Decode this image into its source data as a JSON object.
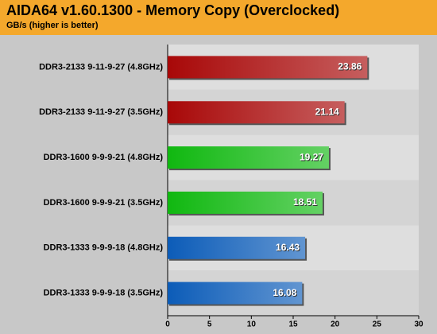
{
  "chart_data": {
    "type": "bar",
    "orientation": "horizontal",
    "title": "AIDA64 v1.60.1300 - Memory Copy (Overclocked)",
    "subtitle": "GB/s (higher is better)",
    "categories": [
      "DDR3-2133 9-11-9-27 (4.8GHz)",
      "DDR3-2133 9-11-9-27 (3.5GHz)",
      "DDR3-1600 9-9-9-21 (4.8GHz)",
      "DDR3-1600 9-9-9-21 (3.5GHz)",
      "DDR3-1333 9-9-9-18 (4.8GHz)",
      "DDR3-1333 9-9-9-18 (3.5GHz)"
    ],
    "values": [
      23.86,
      21.14,
      19.27,
      18.51,
      16.43,
      16.08
    ],
    "colors": [
      "#a80808",
      "#a80808",
      "#10b810",
      "#10b810",
      "#0c5cb8",
      "#0c5cb8"
    ],
    "xlim": [
      0,
      30
    ],
    "xticks": [
      0,
      5,
      10,
      15,
      20,
      25,
      30
    ]
  }
}
